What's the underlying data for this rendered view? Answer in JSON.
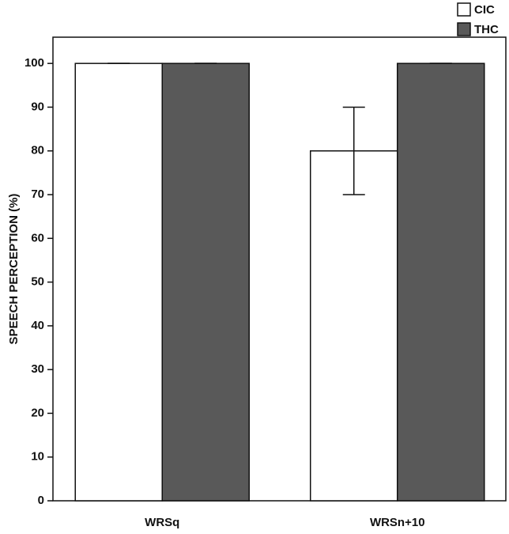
{
  "chart_data": {
    "type": "bar",
    "y_label": "SPEECH PERCEPTION (%)",
    "categories": [
      "WRSq",
      "WRSn+10"
    ],
    "series": [
      {
        "name": "CIC",
        "color": "#ffffff",
        "values": [
          100,
          80
        ],
        "errors": [
          0,
          10
        ]
      },
      {
        "name": "THC",
        "color": "#595959",
        "values": [
          100,
          100
        ],
        "errors": [
          0,
          0
        ]
      }
    ],
    "ylim": [
      0,
      106
    ],
    "yticks": [
      0,
      10,
      20,
      30,
      40,
      50,
      60,
      70,
      80,
      90,
      100
    ]
  }
}
